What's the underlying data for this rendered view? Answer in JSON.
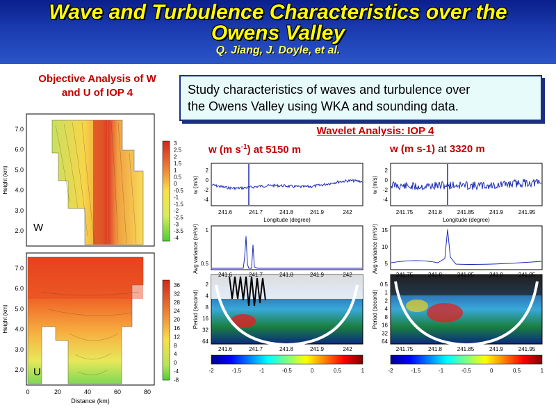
{
  "header": {
    "title_line1": "Wave and Turbulence Characteristics over the",
    "title_line2": "Owens Valley",
    "authors": "Q. Jiang, J. Doyle, et al."
  },
  "objective": {
    "title_line1": "Objective Analysis of W",
    "title_line2": "and U of IOP 4",
    "panel_w_label": "W",
    "panel_u_label": "U",
    "ylabel": "Height (km)",
    "xlabel": "Distance (km)",
    "yticks": [
      "7.0",
      "6.0",
      "5.0",
      "4.0",
      "3.0",
      "2.0"
    ],
    "xticks": [
      "0",
      "20",
      "40",
      "60",
      "80"
    ],
    "w_colorbar": [
      "3",
      "2.5",
      "2",
      "1.5",
      "1",
      "0.5",
      "0",
      "-0.5",
      "-1",
      "-1.5",
      "-2",
      "-2.5",
      "-3",
      "-3.5",
      "-4"
    ],
    "u_colorbar": [
      "36",
      "32",
      "28",
      "24",
      "20",
      "16",
      "12",
      "8",
      "4",
      "0",
      "-4",
      "-8"
    ]
  },
  "study": {
    "text_line1": "Study characteristics of waves and turbulence over",
    "text_line2": "the Owens Valley using WKA and sounding data."
  },
  "wavelet": {
    "title": "Wavelet Analysis: IOP 4",
    "left": {
      "title_main": "w (m s",
      "title_sup": "-1",
      "title_mid": ") at ",
      "title_alt": "5150 m",
      "w_ylabel": "w (m/s)",
      "w_yticks": [
        "2",
        "0",
        "-2",
        "-4"
      ],
      "xticks": [
        "241.6",
        "241.7",
        "241.8",
        "241.9",
        "242"
      ],
      "xlabel": "Longitude (degree)",
      "var_ylabel": "Avg variance (m²/s²)",
      "var_yticks": [
        "1",
        "0.5"
      ],
      "period_ylabel": "Period (second)",
      "period_yticks": [
        "2",
        "4",
        "8",
        "16",
        "32",
        "64"
      ],
      "colorbar_ticks": [
        "-2",
        "-1.5",
        "-1",
        "-0.5",
        "0",
        "0.5",
        "1"
      ]
    },
    "right": {
      "title_main": "w (m s-1) ",
      "title_mid": "at ",
      "title_alt": "3320 m",
      "w_ylabel": "w (m/s)",
      "w_yticks": [
        "2",
        "0",
        "-2",
        "-4"
      ],
      "xticks": [
        "241.75",
        "241.8",
        "241.85",
        "241.9",
        "241.95"
      ],
      "xlabel": "Longitude (degree)",
      "var_ylabel": "Avg variance (m²/s²)",
      "var_yticks": [
        "15",
        "10",
        "5"
      ],
      "period_ylabel": "Period (second)",
      "period_yticks": [
        "0.5",
        "1",
        "2",
        "4",
        "8",
        "16",
        "32",
        "64"
      ],
      "colorbar_ticks": [
        "-2",
        "-1.5",
        "-1",
        "-0.5",
        "0",
        "0.5",
        "1"
      ]
    }
  },
  "colors": {
    "header_bg": "#1a3bb0",
    "title_yellow": "#ffff00",
    "accent_red": "#c00000",
    "box_bg": "#e8fbfb",
    "box_border": "#1b2f80"
  }
}
